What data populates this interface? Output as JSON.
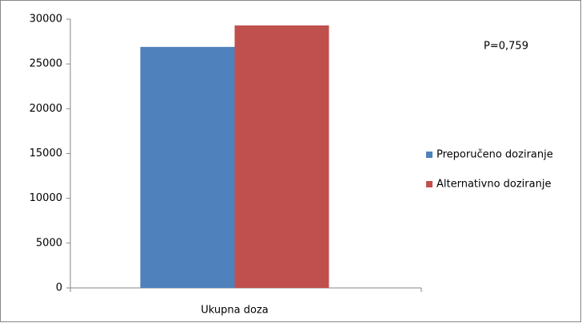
{
  "chart_data": {
    "type": "bar",
    "annotation": "P=0,759",
    "categories": [
      "Ukupna doza"
    ],
    "series": [
      {
        "name": "Preporučeno doziranje",
        "color": "#4f81bd",
        "values": [
          26900
        ]
      },
      {
        "name": "Alternativno doziranje",
        "color": "#c0504d",
        "values": [
          29300
        ]
      }
    ],
    "ylim": [
      0,
      30000
    ],
    "yticks": [
      0,
      5000,
      10000,
      15000,
      20000,
      25000,
      30000
    ],
    "grid": false,
    "legend": "right"
  }
}
